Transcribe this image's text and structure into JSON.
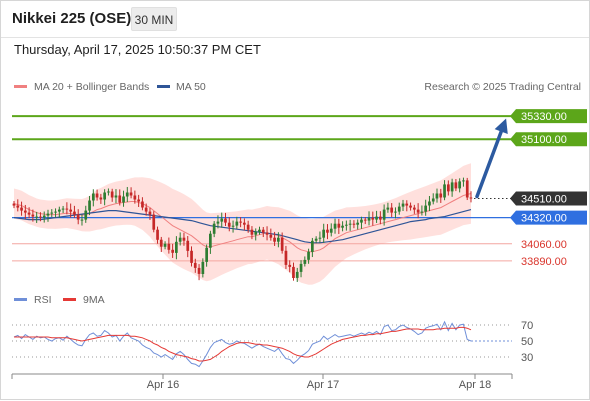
{
  "header": {
    "title": "Nikkei 225 (OSE)",
    "timeframe": "30 MIN",
    "datetime": "Thursday, April 17, 2025 10:50:37 PM CET"
  },
  "legend": {
    "ma20_bb": "MA 20 + Bollinger Bands",
    "ma50": "MA 50",
    "credit": "Research © 2025 Trading Central"
  },
  "rsi_legend": {
    "rsi": "RSI",
    "ma9": "9MA"
  },
  "colors": {
    "candle_up": "#2e7d32",
    "candle_down": "#c62828",
    "bollinger_fill": "#ffdad7",
    "ma20": "#f08080",
    "ma50": "#2f5597",
    "resistance": "#5ca61a",
    "current_price": "#333333",
    "pivot": "#2f6fe0",
    "support": "#f4a6a0",
    "arrow": "#2c5aa0",
    "rsi": "#6f8fd8",
    "rsi_ma": "#e53935"
  },
  "chart_data": {
    "type": "candlestick",
    "symbol": "Nikkei 225 (OSE)",
    "interval": "30 MIN",
    "x_ticks": [
      "Apr 16",
      "Apr 17",
      "Apr 18"
    ],
    "price_levels": [
      {
        "label": "35330.00",
        "value": 35330,
        "kind": "resistance"
      },
      {
        "label": "35100.00",
        "value": 35100,
        "kind": "resistance"
      },
      {
        "label": "34510.00",
        "value": 34510,
        "kind": "current"
      },
      {
        "label": "34320.00",
        "value": 34320,
        "kind": "pivot"
      },
      {
        "label": "34060.00",
        "value": 34060,
        "kind": "support"
      },
      {
        "label": "33890.00",
        "value": 33890,
        "kind": "support"
      }
    ],
    "y_range": [
      33630,
      35480
    ],
    "closes": [
      34440,
      34420,
      34390,
      34370,
      34350,
      34330,
      34330,
      34320,
      34340,
      34360,
      34370,
      34380,
      34400,
      34410,
      34400,
      34380,
      34350,
      34300,
      34300,
      34390,
      34490,
      34560,
      34520,
      34500,
      34570,
      34580,
      34520,
      34540,
      34470,
      34530,
      34570,
      34540,
      34500,
      34480,
      34420,
      34380,
      34350,
      34200,
      34100,
      34030,
      34060,
      34000,
      33970,
      34080,
      34120,
      34090,
      33990,
      33870,
      33820,
      33760,
      33880,
      34020,
      34160,
      34260,
      34280,
      34310,
      34270,
      34230,
      34240,
      34280,
      34270,
      34250,
      34200,
      34150,
      34180,
      34200,
      34170,
      34150,
      34120,
      34080,
      34120,
      33990,
      33850,
      33830,
      33720,
      33780,
      33860,
      33900,
      33980,
      34090,
      34110,
      34120,
      34200,
      34170,
      34210,
      34260,
      34220,
      34240,
      34250,
      34260,
      34250,
      34270,
      34300,
      34290,
      34320,
      34300,
      34330,
      34300,
      34400,
      34420,
      34370,
      34380,
      34430,
      34460,
      34440,
      34420,
      34400,
      34370,
      34380,
      34440,
      34480,
      34510,
      34560,
      34520,
      34650,
      34580,
      34670,
      34610,
      34680,
      34690,
      34520,
      34510
    ],
    "ma20": [
      34460,
      34450,
      34440,
      34420,
      34400,
      34385,
      34370,
      34360,
      34355,
      34350,
      34350,
      34350,
      34355,
      34360,
      34365,
      34360,
      34355,
      34350,
      34345,
      34350,
      34360,
      34380,
      34400,
      34410,
      34425,
      34440,
      34450,
      34460,
      34465,
      34470,
      34475,
      34480,
      34480,
      34470,
      34460,
      34440,
      34420,
      34390,
      34360,
      34330,
      34300,
      34270,
      34240,
      34220,
      34200,
      34180,
      34160,
      34140,
      34110,
      34080,
      34050,
      34030,
      34030,
      34040,
      34050,
      34060,
      34070,
      34080,
      34090,
      34100,
      34110,
      34120,
      34130,
      34130,
      34140,
      34150,
      34160,
      34170,
      34160,
      34150,
      34140,
      34120,
      34100,
      34080,
      34050,
      34020,
      34000,
      33990,
      33980,
      33980,
      33990,
      34000,
      34020,
      34050,
      34080,
      34110,
      34130,
      34150,
      34170,
      34180,
      34190,
      34200,
      34210,
      34220,
      34230,
      34240,
      34250,
      34260,
      34270,
      34280,
      34290,
      34300,
      34310,
      34320,
      34330,
      34340,
      34350,
      34360,
      34370,
      34380,
      34390,
      34400,
      34410,
      34420,
      34440,
      34460,
      34480,
      34500,
      34520,
      34540,
      34550,
      34560
    ],
    "ma50": [
      34320,
      34315,
      34310,
      34305,
      34300,
      34300,
      34300,
      34300,
      34305,
      34310,
      34315,
      34320,
      34325,
      34330,
      34335,
      34340,
      34345,
      34350,
      34355,
      34360,
      34365,
      34370,
      34375,
      34380,
      34385,
      34390,
      34390,
      34390,
      34385,
      34380,
      34375,
      34370,
      34365,
      34360,
      34355,
      34350,
      34345,
      34340,
      34335,
      34330,
      34325,
      34320,
      34315,
      34310,
      34305,
      34300,
      34295,
      34290,
      34280,
      34270,
      34260,
      34250,
      34240,
      34235,
      34230,
      34225,
      34220,
      34215,
      34210,
      34205,
      34200,
      34195,
      34190,
      34185,
      34180,
      34175,
      34170,
      34165,
      34160,
      34155,
      34150,
      34140,
      34130,
      34120,
      34110,
      34100,
      34090,
      34080,
      34075,
      34070,
      34070,
      34070,
      34075,
      34080,
      34085,
      34090,
      34095,
      34100,
      34110,
      34120,
      34130,
      34140,
      34150,
      34160,
      34170,
      34180,
      34190,
      34200,
      34210,
      34220,
      34230,
      34240,
      34250,
      34260,
      34270,
      34280,
      34285,
      34290,
      34295,
      34300,
      34310,
      34315,
      34320,
      34325,
      34330,
      34340,
      34350,
      34360,
      34370,
      34380,
      34390,
      34400
    ],
    "bollinger_half_width": [
      150,
      150,
      148,
      146,
      144,
      142,
      140,
      140,
      140,
      140,
      140,
      142,
      144,
      146,
      148,
      150,
      152,
      156,
      160,
      168,
      178,
      190,
      200,
      206,
      210,
      214,
      216,
      218,
      220,
      222,
      226,
      232,
      240,
      250,
      262,
      276,
      292,
      308,
      324,
      338,
      350,
      360,
      366,
      370,
      372,
      372,
      370,
      366,
      362,
      356,
      350,
      342,
      334,
      326,
      318,
      310,
      302,
      296,
      290,
      284,
      280,
      276,
      272,
      270,
      268,
      266,
      266,
      266,
      270,
      276,
      284,
      292,
      300,
      308,
      316,
      322,
      326,
      328,
      328,
      326,
      322,
      316,
      308,
      300,
      290,
      280,
      270,
      260,
      252,
      244,
      236,
      228,
      222,
      216,
      212,
      208,
      206,
      204,
      204,
      206,
      210,
      214,
      220,
      226,
      232,
      238,
      242,
      246,
      250,
      254,
      258,
      262,
      266,
      270,
      274,
      278,
      282,
      286,
      290,
      294,
      298,
      300
    ],
    "rsi": [
      55,
      57,
      53,
      58,
      55,
      52,
      56,
      54,
      55,
      52,
      50,
      53,
      54,
      51,
      56,
      52,
      48,
      45,
      44,
      52,
      58,
      60,
      56,
      57,
      63,
      60,
      55,
      57,
      50,
      56,
      60,
      54,
      52,
      50,
      45,
      42,
      40,
      35,
      33,
      30,
      33,
      30,
      27,
      34,
      37,
      33,
      27,
      22,
      21,
      18,
      25,
      33,
      42,
      48,
      50,
      52,
      48,
      46,
      47,
      50,
      48,
      47,
      44,
      41,
      44,
      46,
      43,
      41,
      39,
      37,
      41,
      34,
      28,
      27,
      22,
      26,
      31,
      34,
      38,
      46,
      48,
      50,
      56,
      52,
      55,
      58,
      55,
      56,
      57,
      58,
      56,
      58,
      60,
      58,
      61,
      59,
      62,
      58,
      68,
      70,
      63,
      64,
      68,
      70,
      67,
      65,
      62,
      58,
      60,
      66,
      68,
      69,
      71,
      64,
      74,
      63,
      72,
      64,
      70,
      71,
      52,
      50
    ],
    "rsi_ma": [
      55,
      55,
      55,
      55,
      55,
      55,
      55,
      55,
      55,
      55,
      54,
      54,
      54,
      54,
      54,
      53,
      52,
      51,
      50,
      51,
      52,
      53,
      54,
      55,
      56,
      57,
      57,
      57,
      57,
      57,
      57,
      56,
      56,
      55,
      54,
      52,
      50,
      47,
      45,
      42,
      40,
      37,
      35,
      33,
      32,
      31,
      30,
      28,
      27,
      25,
      25,
      26,
      27,
      30,
      33,
      37,
      40,
      43,
      45,
      47,
      48,
      48,
      48,
      47,
      46,
      46,
      45,
      45,
      44,
      43,
      42,
      41,
      39,
      37,
      34,
      32,
      31,
      30,
      30,
      32,
      34,
      37,
      40,
      43,
      46,
      48,
      50,
      52,
      53,
      54,
      55,
      56,
      57,
      57,
      58,
      58,
      59,
      59,
      60,
      61,
      62,
      62,
      63,
      64,
      65,
      65,
      65,
      65,
      64,
      64,
      64,
      64,
      65,
      65,
      66,
      66,
      66,
      66,
      67,
      67,
      66,
      64
    ],
    "rsi_levels": [
      70,
      50,
      30
    ],
    "projection": {
      "from": 34510,
      "to": 35330
    }
  }
}
